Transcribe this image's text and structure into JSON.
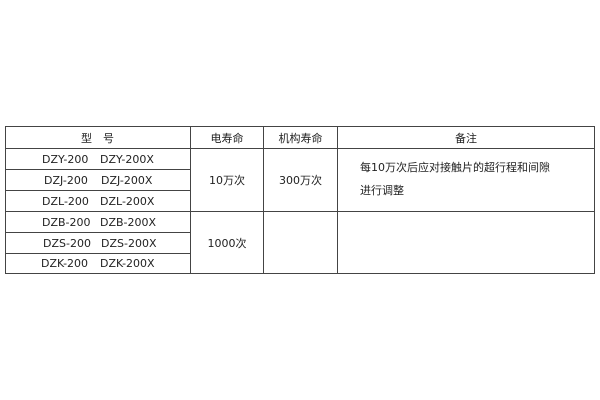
{
  "table": {
    "headers": {
      "model": "型　号",
      "electrical_life": "电寿命",
      "mechanical_life": "机构寿命",
      "remarks": "备注"
    },
    "rows": [
      {
        "model_a": "DZY-200",
        "model_b": "DZY-200X"
      },
      {
        "model_a": "DZJ-200",
        "model_b": "DZJ-200X"
      },
      {
        "model_a": "DZL-200",
        "model_b": "DZL-200X"
      },
      {
        "model_a": "DZB-200",
        "model_b": "DZB-200X"
      },
      {
        "model_a": "DZS-200",
        "model_b": "DZS-200X"
      },
      {
        "model_a": "DZK-200",
        "model_b": "DZK-200X"
      }
    ],
    "groups": [
      {
        "electrical_life": "10万次",
        "mechanical_life": "300万次",
        "remarks": [
          "每10万次后应对接触片的超行程和间隙",
          "进行调整"
        ]
      },
      {
        "electrical_life": "1000次",
        "mechanical_life": "",
        "remarks": []
      }
    ]
  }
}
